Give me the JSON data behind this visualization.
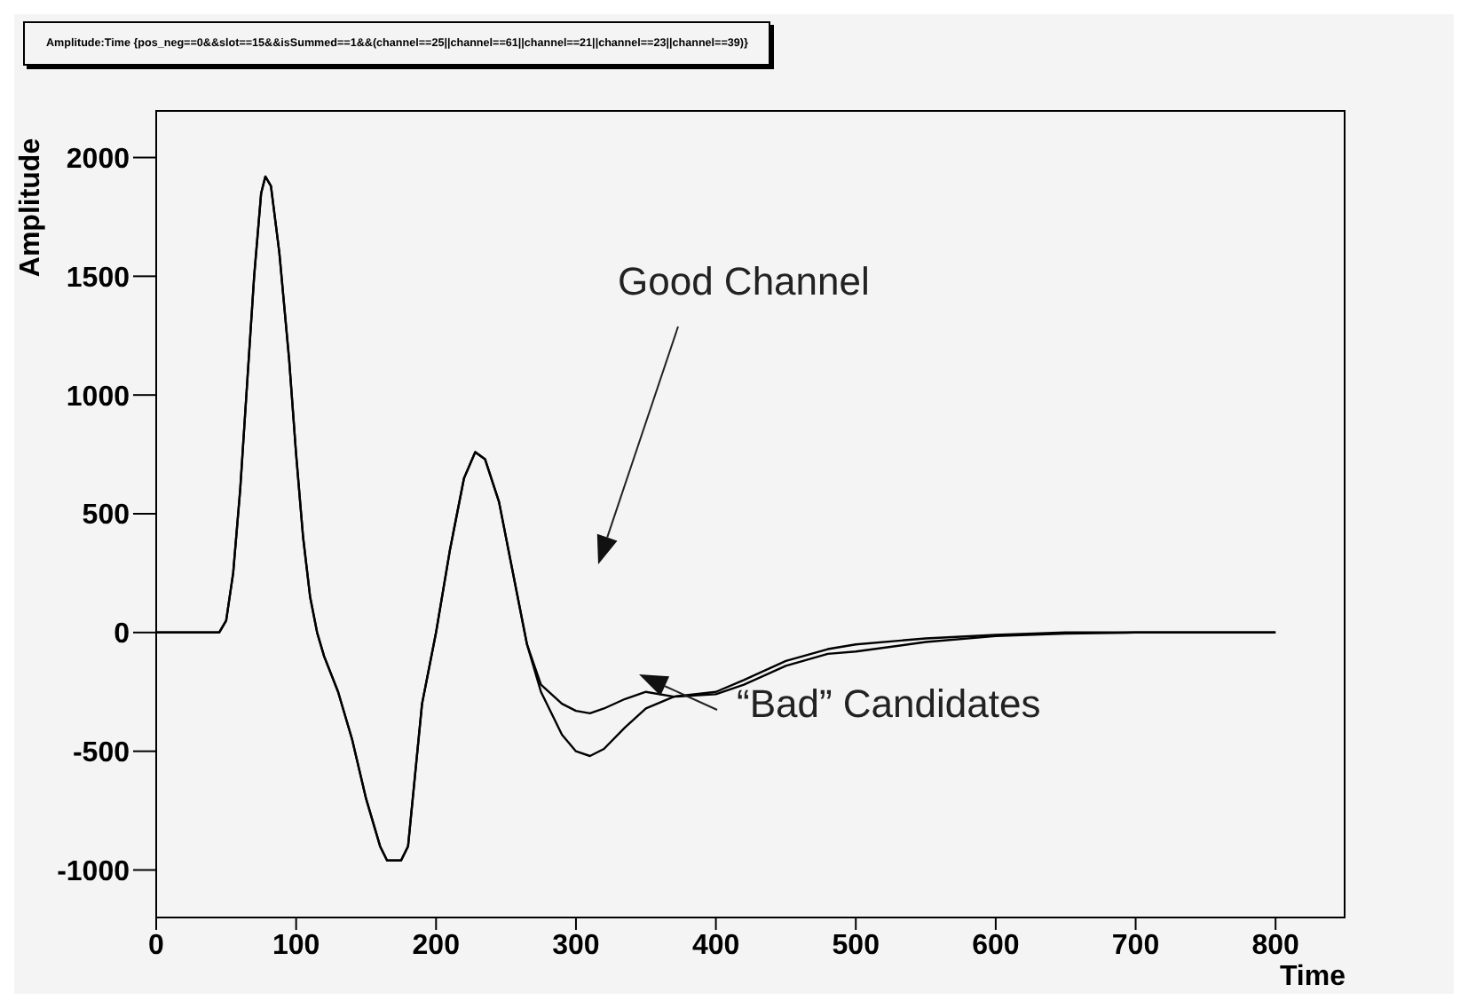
{
  "chart_data": {
    "type": "line",
    "title": "Amplitude:Time {pos_neg==0&&slot==15&&isSummed==1&&(channel==25||channel==61||channel==21||channel==23||channel==39)}",
    "xlabel": "Time",
    "ylabel": "Amplitude",
    "x": [
      0,
      45,
      50,
      55,
      60,
      65,
      70,
      75,
      78,
      82,
      88,
      95,
      100,
      105,
      110,
      115,
      120,
      130,
      140,
      150,
      160,
      165,
      175,
      180,
      185,
      190,
      200,
      210,
      220,
      228,
      235,
      245,
      255,
      265,
      275,
      290,
      300,
      310,
      320,
      335,
      350,
      370,
      400,
      420,
      450,
      480,
      500,
      550,
      600,
      650,
      700,
      800
    ],
    "series": [
      {
        "color": "#000000",
        "values": [
          0,
          0,
          50,
          250,
          600,
          1050,
          1500,
          1850,
          1920,
          1880,
          1600,
          1150,
          750,
          400,
          150,
          0,
          -100,
          -250,
          -450,
          -700,
          -900,
          -960,
          -960,
          -900,
          -600,
          -300,
          0,
          350,
          650,
          760,
          730,
          550,
          250,
          -50,
          -250,
          -430,
          -500,
          -520,
          -490,
          -400,
          -320,
          -270,
          -250,
          -200,
          -120,
          -70,
          -50,
          -25,
          -10,
          0,
          0,
          0
        ]
      },
      {
        "color": "#000000",
        "values": [
          0,
          0,
          50,
          250,
          600,
          1050,
          1500,
          1850,
          1920,
          1880,
          1600,
          1150,
          750,
          400,
          150,
          0,
          -100,
          -250,
          -450,
          -700,
          -900,
          -960,
          -960,
          -900,
          -600,
          -300,
          0,
          350,
          650,
          760,
          730,
          550,
          250,
          -50,
          -220,
          -300,
          -330,
          -340,
          -320,
          -280,
          -250,
          -270,
          -260,
          -220,
          -140,
          -90,
          -80,
          -40,
          -15,
          -5,
          0,
          0
        ]
      }
    ],
    "xlim": [
      0,
      850
    ],
    "xticks": [
      0,
      100,
      200,
      300,
      400,
      500,
      600,
      700,
      800
    ],
    "ylim": [
      -1200,
      2200
    ],
    "yticks": [
      -1000,
      -500,
      0,
      500,
      1000,
      1500,
      2000
    ],
    "grid": false,
    "legend": false,
    "marker": "none",
    "line_style": "solid",
    "annotations": [
      "Good Channel",
      "“Bad” Candidates"
    ]
  }
}
